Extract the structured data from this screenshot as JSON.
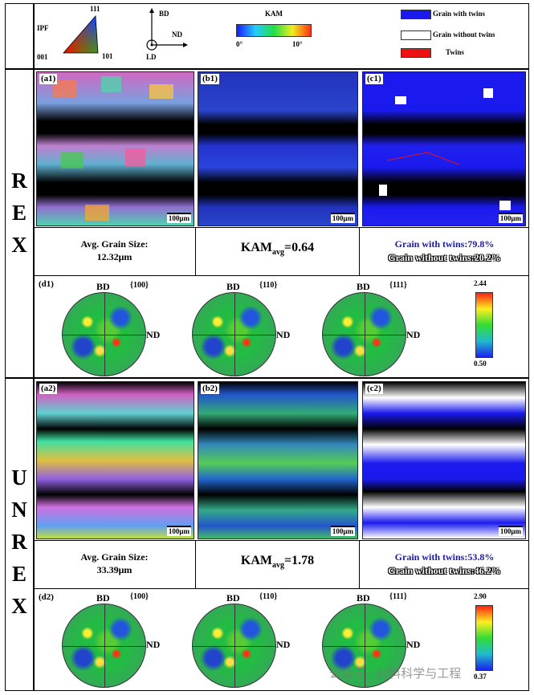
{
  "header": {
    "ipf": {
      "label": "IPF",
      "c111": "111",
      "c001": "001",
      "c101": "101"
    },
    "axes": {
      "bd": "BD",
      "nd": "ND",
      "ld": "LD"
    },
    "kam": {
      "label": "KAM",
      "min": "0°",
      "max": "10°"
    },
    "legend": [
      {
        "label": "Grain with twins",
        "color": "#1a1aee"
      },
      {
        "label": "Grain without twins",
        "color": "#ffffff"
      },
      {
        "label": "Twins",
        "color": "#ee1111"
      }
    ]
  },
  "rex": {
    "side_letters": [
      "R",
      "E",
      "X"
    ],
    "panels": {
      "a": "(a1)",
      "b": "(b1)",
      "c": "(c1)",
      "d": "(d1)"
    },
    "scalebar": "100μm",
    "grain_size_label": "Avg. Grain Size:",
    "grain_size_value": "12.32μm",
    "kam_prefix": "KAM",
    "kam_sub": "avg",
    "kam_value": "=0.64",
    "twins_with": "Grain with twins:79.8%",
    "twins_without": "Grain without twins:20.2%",
    "pf_labels": [
      "{100}",
      "{110}",
      "{111}"
    ],
    "pf_bd": "BD",
    "pf_nd": "ND",
    "scale_max": "2.44",
    "scale_min": "0.50"
  },
  "unrex": {
    "side_letters": [
      "U",
      "N",
      "R",
      "E",
      "X"
    ],
    "panels": {
      "a": "(a2)",
      "b": "(b2)",
      "c": "(c2)",
      "d": "(d2)"
    },
    "scalebar": "100μm",
    "grain_size_label": "Avg. Grain Size:",
    "grain_size_value": "33.39μm",
    "kam_prefix": "KAM",
    "kam_sub": "avg",
    "kam_value": "=1.78",
    "twins_with": "Grain with twins:53.8%",
    "twins_without": "Grain without twins:46.2%",
    "pf_labels": [
      "{100}",
      "{110}",
      "{111}"
    ],
    "pf_bd": "BD",
    "pf_nd": "ND",
    "scale_max": "2.90",
    "scale_min": "0.37"
  },
  "watermark": "公众号 · 材料科学与工程"
}
